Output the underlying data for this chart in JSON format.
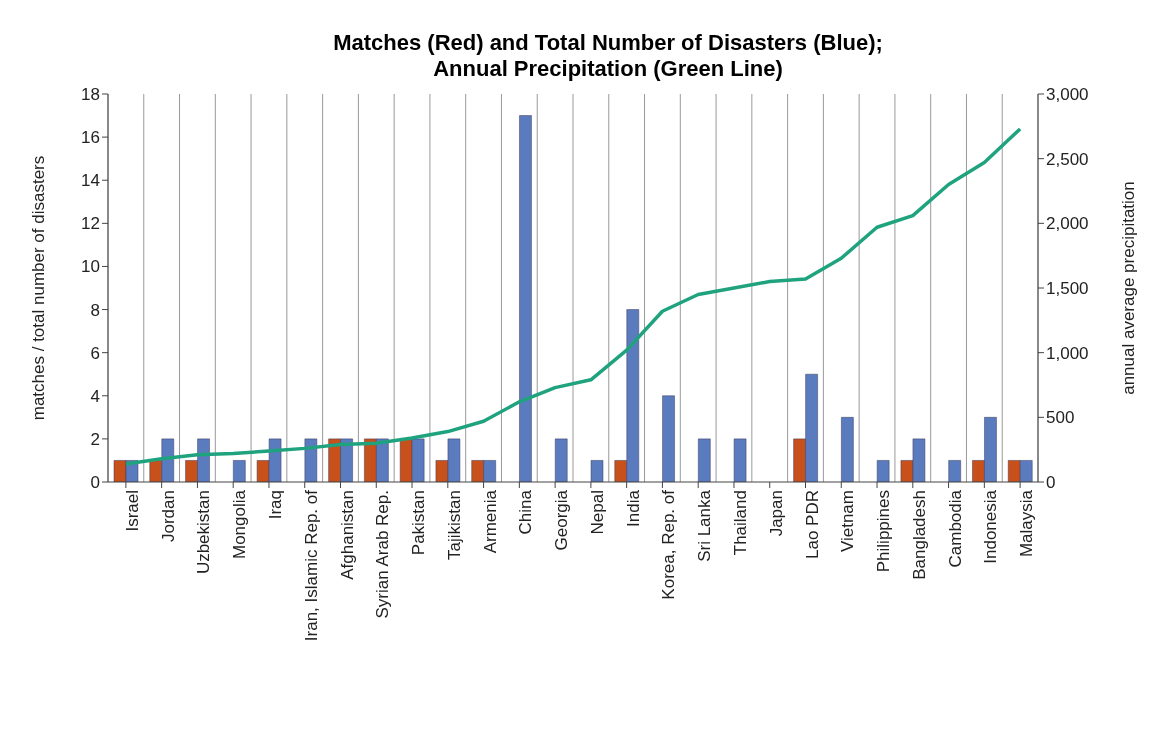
{
  "chart_data": {
    "type": "bar",
    "title": "Matches (Red) and Total Number of Disasters (Blue);\nAnnual Precipitation (Green Line)",
    "ylabel": "matches / total number of disasters",
    "y2label": "annual average precipitation",
    "categories": [
      "Israel",
      "Jordan",
      "Uzbekistan",
      "Mongolia",
      "Iraq",
      "Iran, Islamic Rep. of",
      "Afghanistan",
      "Syrian Arab Rep.",
      "Pakistan",
      "Tajikistan",
      "Armenia",
      "China",
      "Georgia",
      "Nepal",
      "India",
      "Korea, Rep. of",
      "Sri Lanka",
      "Thailand",
      "Japan",
      "Lao PDR",
      "Vietnam",
      "Philippines",
      "Bangladesh",
      "Cambodia",
      "Indonesia",
      "Malaysia"
    ],
    "series": [
      {
        "color": "#c8501a",
        "values": [
          1,
          1,
          1,
          0,
          1,
          0,
          2,
          2,
          2,
          1,
          1,
          0,
          0,
          0,
          1,
          0,
          0,
          0,
          0,
          2,
          0,
          0,
          1,
          0,
          1,
          1
        ]
      },
      {
        "color": "#5b7bbf",
        "values": [
          1,
          2,
          2,
          1,
          2,
          2,
          2,
          2,
          2,
          2,
          1,
          17,
          2,
          1,
          8,
          4,
          2,
          2,
          0,
          5,
          3,
          1,
          2,
          1,
          3,
          1
        ]
      },
      {
        "type": "line",
        "axis": "y2",
        "color": "#1fa37e",
        "values": [
          140,
          180,
          210,
          220,
          240,
          260,
          290,
          300,
          340,
          390,
          470,
          620,
          730,
          790,
          1020,
          1320,
          1450,
          1500,
          1550,
          1570,
          1730,
          1970,
          2060,
          2300,
          2470,
          2730
        ]
      }
    ],
    "ylim": [
      0,
      18
    ],
    "yticks": [
      0,
      2,
      4,
      6,
      8,
      10,
      12,
      14,
      16,
      18
    ],
    "y2lim": [
      0,
      3000
    ],
    "y2ticks": [
      0,
      {
        "value": 500,
        "label": "500"
      },
      {
        "value": 1000,
        "label": "1,000"
      },
      {
        "value": 1500,
        "label": "1,500"
      },
      {
        "value": 2000,
        "label": "2,000"
      },
      {
        "value": 2500,
        "label": "2,500"
      },
      {
        "value": 3000,
        "label": "3,000"
      }
    ],
    "grid": "x",
    "legend": false,
    "marker": "none",
    "line_style": "solid"
  }
}
